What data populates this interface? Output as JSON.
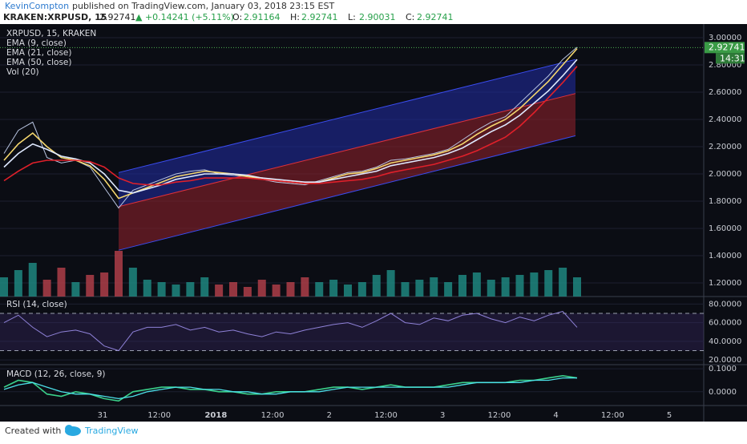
{
  "header": {
    "author": "KevinCompton",
    "published": "published on TradingView.com, January 03, 2018 23:15 EST",
    "symbol": "KRAKEN:XRPUSD, 15",
    "price": "2.92741",
    "change": "▲ +0.14241 (+5.11%)",
    "ohlc": [
      {
        "label": "O:",
        "value": "2.91164"
      },
      {
        "label": "H:",
        "value": "2.92741"
      },
      {
        "label": "L:",
        "value": "2.90031"
      },
      {
        "label": "C:",
        "value": "2.92741"
      }
    ]
  },
  "main": {
    "legend": [
      "XRPUSD, 15, KRAKEN",
      "EMA (9, close)",
      "EMA (21, close)",
      "EMA (50, close)",
      "Vol (20)"
    ],
    "ylim": [
      1.1,
      3.1
    ],
    "yticks": [
      {
        "value": 3.0,
        "label": "3.00000"
      },
      {
        "value": 2.8,
        "label": "2.80000"
      },
      {
        "value": 2.6,
        "label": "2.60000"
      },
      {
        "value": 2.4,
        "label": "2.40000"
      },
      {
        "value": 2.2,
        "label": "2.20000"
      },
      {
        "value": 2.0,
        "label": "2.00000"
      },
      {
        "value": 1.8,
        "label": "1.80000"
      },
      {
        "value": 1.6,
        "label": "1.60000"
      },
      {
        "value": 1.4,
        "label": "1.40000"
      },
      {
        "value": 1.2,
        "label": "1.20000"
      }
    ],
    "last_price": {
      "value": 2.92741,
      "label": "2.92741"
    },
    "countdown": "14:31",
    "channel": {
      "upper": [
        2.01,
        2.84
      ],
      "middle": [
        1.76,
        2.59
      ],
      "lower": [
        1.44,
        2.28
      ]
    },
    "series": [
      {
        "name": "close",
        "color": "#b8c4e0",
        "values": [
          2.15,
          2.32,
          2.38,
          2.12,
          2.08,
          2.1,
          2.05,
          1.9,
          1.75,
          1.88,
          1.92,
          1.96,
          2.0,
          2.02,
          2.03,
          2.0,
          1.99,
          1.98,
          1.96,
          1.94,
          1.93,
          1.92,
          1.95,
          1.98,
          2.01,
          2.02,
          2.05,
          2.1,
          2.11,
          2.13,
          2.15,
          2.18,
          2.25,
          2.32,
          2.38,
          2.42,
          2.52,
          2.62,
          2.72,
          2.84,
          2.93
        ]
      },
      {
        "name": "EMA 9",
        "color": "#f5d76e",
        "values": [
          2.1,
          2.22,
          2.3,
          2.2,
          2.12,
          2.1,
          2.06,
          1.96,
          1.82,
          1.86,
          1.9,
          1.94,
          1.98,
          2.0,
          2.02,
          2.01,
          2.0,
          1.98,
          1.97,
          1.95,
          1.94,
          1.93,
          1.94,
          1.97,
          2.0,
          2.01,
          2.04,
          2.08,
          2.1,
          2.12,
          2.14,
          2.17,
          2.22,
          2.29,
          2.35,
          2.4,
          2.48,
          2.58,
          2.68,
          2.8,
          2.92
        ]
      },
      {
        "name": "EMA 21",
        "color": "#dfe9ff",
        "values": [
          2.05,
          2.15,
          2.22,
          2.18,
          2.13,
          2.11,
          2.08,
          2.0,
          1.88,
          1.86,
          1.89,
          1.92,
          1.96,
          1.98,
          2.0,
          2.0,
          2.0,
          1.99,
          1.97,
          1.96,
          1.95,
          1.94,
          1.94,
          1.96,
          1.98,
          2.0,
          2.02,
          2.06,
          2.08,
          2.1,
          2.12,
          2.15,
          2.19,
          2.25,
          2.31,
          2.36,
          2.43,
          2.52,
          2.61,
          2.72,
          2.84
        ]
      },
      {
        "name": "EMA 50",
        "color": "#e0202a",
        "values": [
          1.95,
          2.02,
          2.08,
          2.1,
          2.1,
          2.1,
          2.09,
          2.05,
          1.97,
          1.93,
          1.92,
          1.92,
          1.94,
          1.95,
          1.97,
          1.97,
          1.97,
          1.97,
          1.96,
          1.95,
          1.94,
          1.93,
          1.93,
          1.94,
          1.95,
          1.96,
          1.98,
          2.01,
          2.03,
          2.05,
          2.07,
          2.1,
          2.13,
          2.17,
          2.22,
          2.27,
          2.35,
          2.45,
          2.56,
          2.67,
          2.79
        ]
      }
    ],
    "volume": {
      "ylim": [
        0,
        100
      ],
      "values": [
        40,
        55,
        70,
        35,
        60,
        30,
        45,
        50,
        95,
        60,
        35,
        30,
        25,
        30,
        40,
        25,
        30,
        20,
        35,
        25,
        30,
        40,
        30,
        35,
        25,
        30,
        45,
        55,
        30,
        35,
        40,
        30,
        45,
        50,
        35,
        40,
        45,
        50,
        55,
        60,
        40
      ]
    }
  },
  "rsi": {
    "legend": "RSI (14, close)",
    "ylim": [
      15,
      88
    ],
    "bands": [
      70,
      30
    ],
    "yticks": [
      {
        "value": 80,
        "label": "80.0000"
      },
      {
        "value": 60,
        "label": "60.0000"
      },
      {
        "value": 40,
        "label": "40.0000"
      },
      {
        "value": 20,
        "label": "20.0000"
      }
    ],
    "values": [
      60,
      68,
      55,
      45,
      50,
      52,
      48,
      35,
      30,
      50,
      55,
      55,
      58,
      52,
      55,
      50,
      52,
      48,
      45,
      50,
      48,
      52,
      55,
      58,
      60,
      55,
      62,
      70,
      60,
      58,
      65,
      62,
      68,
      70,
      64,
      60,
      66,
      62,
      68,
      72,
      55
    ]
  },
  "macd": {
    "legend": "MACD (12, 26, close, 9)",
    "ylim": [
      -0.06,
      0.118
    ],
    "yticks": [
      {
        "value": 0.1,
        "label": "0.1000"
      },
      {
        "value": 0,
        "label": "0.0000"
      }
    ],
    "macd": [
      0.02,
      0.05,
      0.04,
      -0.01,
      -0.02,
      0.0,
      -0.01,
      -0.03,
      -0.04,
      0.0,
      0.01,
      0.02,
      0.02,
      0.01,
      0.01,
      0.0,
      0.0,
      -0.01,
      -0.01,
      0.0,
      0.0,
      0.0,
      0.01,
      0.02,
      0.02,
      0.01,
      0.02,
      0.03,
      0.02,
      0.02,
      0.02,
      0.03,
      0.04,
      0.04,
      0.04,
      0.04,
      0.05,
      0.05,
      0.06,
      0.07,
      0.06
    ],
    "signal": [
      0.01,
      0.03,
      0.04,
      0.02,
      0.0,
      -0.01,
      -0.01,
      -0.02,
      -0.03,
      -0.02,
      0.0,
      0.01,
      0.02,
      0.02,
      0.01,
      0.01,
      0.0,
      0.0,
      -0.01,
      -0.01,
      0.0,
      0.0,
      0.0,
      0.01,
      0.02,
      0.02,
      0.02,
      0.02,
      0.02,
      0.02,
      0.02,
      0.02,
      0.03,
      0.04,
      0.04,
      0.04,
      0.04,
      0.05,
      0.05,
      0.06,
      0.06
    ]
  },
  "time_axis": [
    "31",
    "12:00",
    "2018",
    "12:00",
    "2",
    "12:00",
    "3",
    "12:00",
    "4",
    "12:00",
    "5"
  ],
  "footer": {
    "created": "Created with",
    "brand": "TradingView"
  }
}
